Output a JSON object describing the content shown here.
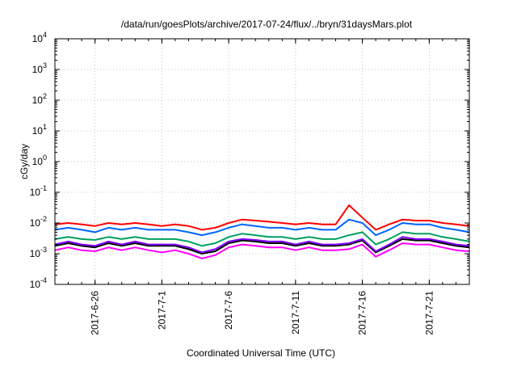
{
  "chart_data": {
    "type": "line",
    "title": "/data/run/goesPlots/archive/2017-07-24/flux/../bryn/31daysMars.plot",
    "xlabel": "Coordinated Universal Time (UTC)",
    "ylabel": "cGy/day",
    "y_scale": "log",
    "ylim": [
      0.0001,
      10000
    ],
    "y_ticks": [
      {
        "value": 0.0001,
        "mantissa": "10",
        "exponent": "-4"
      },
      {
        "value": 0.001,
        "mantissa": "10",
        "exponent": "-3"
      },
      {
        "value": 0.01,
        "mantissa": "10",
        "exponent": "-2"
      },
      {
        "value": 0.1,
        "mantissa": "10",
        "exponent": "-1"
      },
      {
        "value": 1,
        "mantissa": "10",
        "exponent": "0"
      },
      {
        "value": 10,
        "mantissa": "10",
        "exponent": "1"
      },
      {
        "value": 100,
        "mantissa": "10",
        "exponent": "2"
      },
      {
        "value": 1000,
        "mantissa": "10",
        "exponent": "3"
      },
      {
        "value": 10000,
        "mantissa": "10",
        "exponent": "4"
      }
    ],
    "xlim": [
      "2017-06-23",
      "2017-07-24"
    ],
    "x_ticks": [
      "2017-6-26",
      "2017-7-1",
      "2017-7-6",
      "2017-7-11",
      "2017-7-16",
      "2017-7-21"
    ],
    "x_tick_dates": [
      "2017-06-26",
      "2017-07-01",
      "2017-07-06",
      "2017-07-11",
      "2017-07-16",
      "2017-07-21"
    ],
    "grid": true,
    "legend": "none",
    "x": [
      "2017-06-23",
      "2017-06-24",
      "2017-06-25",
      "2017-06-26",
      "2017-06-27",
      "2017-06-28",
      "2017-06-29",
      "2017-06-30",
      "2017-07-01",
      "2017-07-02",
      "2017-07-03",
      "2017-07-04",
      "2017-07-05",
      "2017-07-06",
      "2017-07-07",
      "2017-07-08",
      "2017-07-09",
      "2017-07-10",
      "2017-07-11",
      "2017-07-12",
      "2017-07-13",
      "2017-07-14",
      "2017-07-15",
      "2017-07-16",
      "2017-07-17",
      "2017-07-18",
      "2017-07-19",
      "2017-07-20",
      "2017-07-21",
      "2017-07-22",
      "2017-07-23",
      "2017-07-24"
    ],
    "series": [
      {
        "color": "#ff0000",
        "values": [
          0.009,
          0.01,
          0.009,
          0.008,
          0.01,
          0.009,
          0.01,
          0.009,
          0.008,
          0.009,
          0.008,
          0.006,
          0.007,
          0.01,
          0.013,
          0.012,
          0.011,
          0.01,
          0.009,
          0.01,
          0.009,
          0.009,
          0.038,
          0.015,
          0.006,
          0.009,
          0.013,
          0.012,
          0.012,
          0.01,
          0.009,
          0.008
        ]
      },
      {
        "color": "#0066ff",
        "values": [
          0.006,
          0.007,
          0.006,
          0.005,
          0.007,
          0.006,
          0.007,
          0.006,
          0.006,
          0.006,
          0.005,
          0.004,
          0.005,
          0.007,
          0.009,
          0.008,
          0.007,
          0.007,
          0.006,
          0.007,
          0.006,
          0.006,
          0.013,
          0.01,
          0.004,
          0.006,
          0.01,
          0.009,
          0.009,
          0.007,
          0.006,
          0.005
        ]
      },
      {
        "color": "#00a060",
        "values": [
          0.003,
          0.0035,
          0.003,
          0.0028,
          0.0035,
          0.003,
          0.0035,
          0.003,
          0.003,
          0.003,
          0.0025,
          0.0018,
          0.0022,
          0.0035,
          0.0045,
          0.004,
          0.0035,
          0.0035,
          0.003,
          0.0035,
          0.003,
          0.003,
          0.004,
          0.005,
          0.002,
          0.003,
          0.005,
          0.0045,
          0.0045,
          0.0035,
          0.003,
          0.0025
        ]
      },
      {
        "color": "#8000ff",
        "values": [
          0.002,
          0.0025,
          0.002,
          0.0018,
          0.0025,
          0.002,
          0.0025,
          0.002,
          0.002,
          0.002,
          0.0016,
          0.0011,
          0.0014,
          0.0025,
          0.003,
          0.0028,
          0.0025,
          0.0025,
          0.002,
          0.0025,
          0.002,
          0.002,
          0.0022,
          0.003,
          0.0012,
          0.002,
          0.0035,
          0.003,
          0.003,
          0.0025,
          0.002,
          0.0018
        ]
      },
      {
        "color": "#000000",
        "values": [
          0.0018,
          0.0022,
          0.0018,
          0.0016,
          0.0022,
          0.0018,
          0.0022,
          0.0018,
          0.0018,
          0.0018,
          0.0014,
          0.001,
          0.0012,
          0.0022,
          0.0027,
          0.0025,
          0.0022,
          0.0022,
          0.0018,
          0.0022,
          0.0018,
          0.0018,
          0.002,
          0.0027,
          0.0011,
          0.0018,
          0.003,
          0.0027,
          0.0027,
          0.0022,
          0.0018,
          0.0016
        ]
      },
      {
        "color": "#ff00ff",
        "values": [
          0.0013,
          0.0016,
          0.0013,
          0.0012,
          0.0016,
          0.0013,
          0.0016,
          0.0013,
          0.0011,
          0.0013,
          0.001,
          0.0007,
          0.0009,
          0.0016,
          0.002,
          0.0018,
          0.0016,
          0.0016,
          0.0013,
          0.0016,
          0.0013,
          0.0013,
          0.0014,
          0.002,
          0.0008,
          0.0013,
          0.0022,
          0.002,
          0.002,
          0.0016,
          0.0013,
          0.0012
        ]
      }
    ]
  }
}
